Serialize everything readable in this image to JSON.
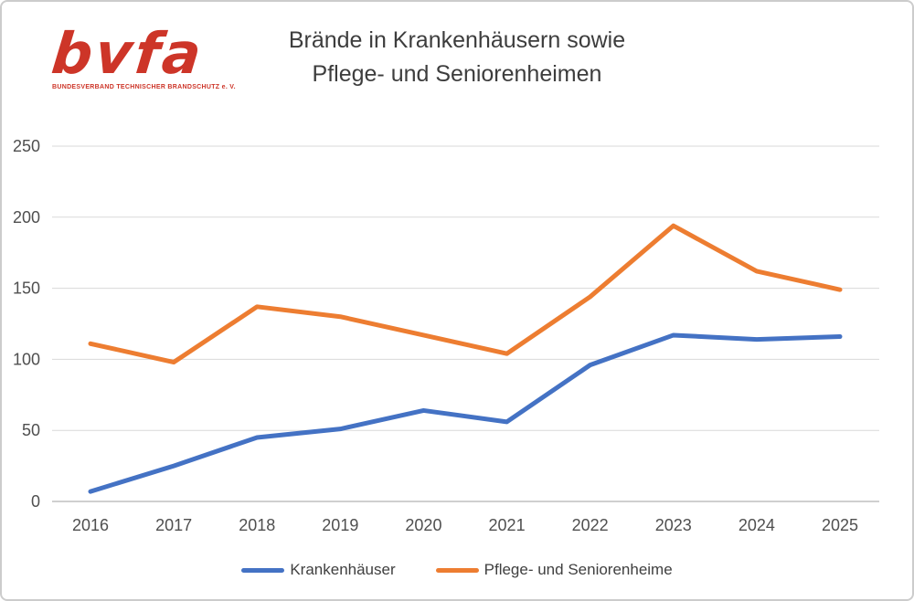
{
  "page": {
    "background": "#ffffff",
    "border_color": "#cccccc"
  },
  "logo": {
    "wordmark": "bvfa",
    "subtitle": "BUNDESVERBAND TECHNISCHER BRANDSCHUTZ e. V.",
    "color": "#cd3528"
  },
  "title": {
    "line1": "Brände in Krankenhäusern sowie",
    "line2": "Pflege- und Seniorenheimen",
    "color": "#3d3d3d"
  },
  "chart_data": {
    "type": "line",
    "title": "Brände in Krankenhäusern sowie Pflege- und Seniorenheimen",
    "x": [
      2016,
      2017,
      2018,
      2019,
      2020,
      2021,
      2022,
      2023,
      2024,
      2025
    ],
    "series": [
      {
        "name": "Krankenhäuser",
        "color": "#4472C4",
        "values": [
          7,
          25,
          45,
          51,
          64,
          56,
          96,
          117,
          114,
          116
        ]
      },
      {
        "name": "Pflege- und Seniorenheime",
        "color": "#ED7D31",
        "values": [
          111,
          98,
          137,
          130,
          117,
          104,
          144,
          194,
          162,
          149
        ]
      }
    ],
    "xlabel": "",
    "ylabel": "",
    "ylim": [
      0,
      250
    ],
    "yticks": [
      0,
      50,
      100,
      150,
      200,
      250
    ],
    "grid": true,
    "gridline_color": "#d9d9d9",
    "axis_line_color": "#bfbfbf",
    "tick_label_color": "#4f4f4f",
    "legend_position": "bottom",
    "legend_label_color": "#404040"
  }
}
